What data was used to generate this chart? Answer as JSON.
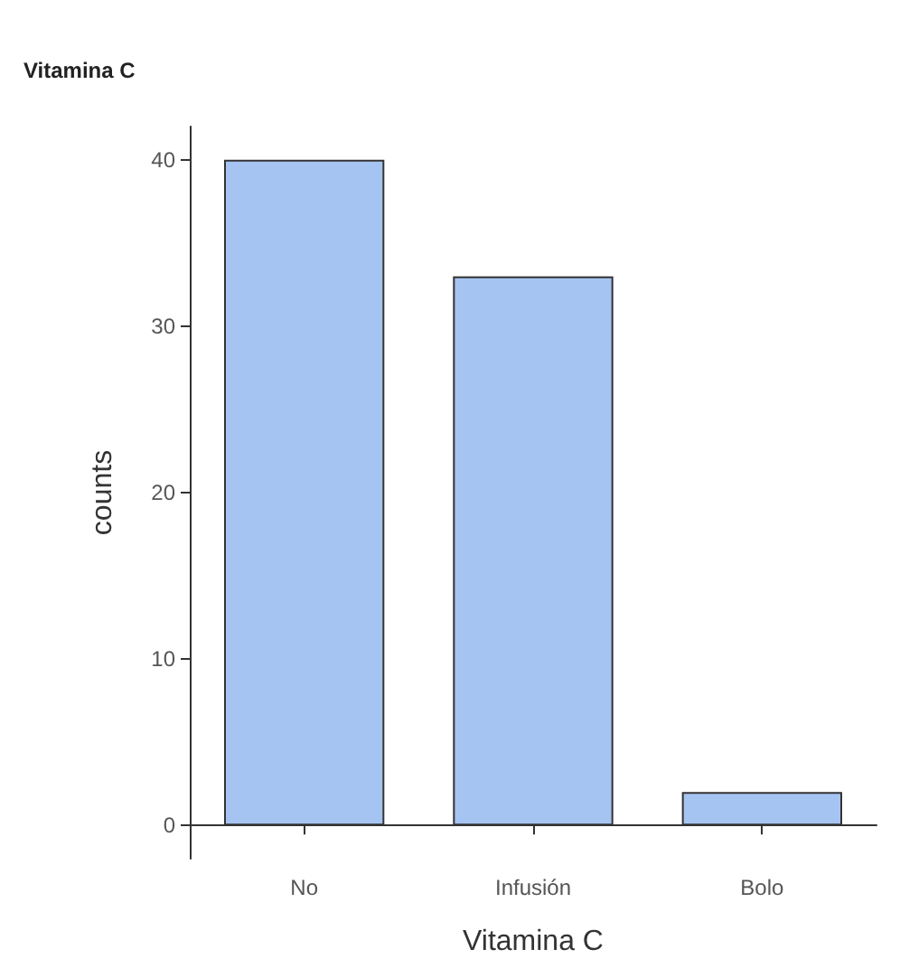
{
  "chart_data": {
    "type": "bar",
    "title": "Vitamina C",
    "xlabel": "Vitamina C",
    "ylabel": "counts",
    "categories": [
      "No",
      "Infusión",
      "Bolo"
    ],
    "values": [
      40,
      33,
      2
    ],
    "color": "#a6c4f2",
    "ylim": [
      -2,
      42
    ],
    "yticks": [
      0,
      10,
      20,
      30,
      40
    ],
    "grid": false
  }
}
